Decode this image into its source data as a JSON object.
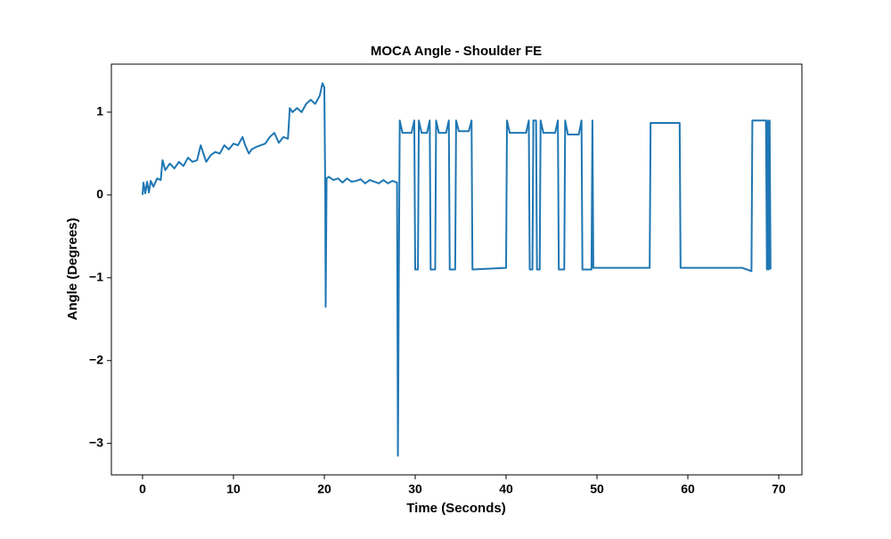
{
  "chart_data": {
    "type": "line",
    "title": "MOCA Angle - Shoulder FE",
    "x_label": "Time (Seconds)",
    "y_label": "Angle (Degrees)",
    "x": [
      0,
      0.1,
      0.3,
      0.5,
      0.7,
      0.9,
      1.2,
      1.6,
      2,
      2.2,
      2.5,
      3,
      3.5,
      4,
      4.5,
      5,
      5.5,
      6,
      6.4,
      6.7,
      7,
      7.5,
      8,
      8.5,
      9,
      9.5,
      10,
      10.5,
      11,
      11.3,
      11.7,
      12,
      12.5,
      13,
      13.5,
      14,
      14.5,
      15,
      15.5,
      16,
      16.2,
      16.5,
      17,
      17.5,
      18,
      18.5,
      19,
      19.5,
      19.8,
      20,
      20.1,
      20.15,
      20.25,
      20.5,
      21,
      21.5,
      22,
      22.5,
      23,
      23.5,
      24,
      24.5,
      25,
      25.5,
      26,
      26.5,
      27,
      27.5,
      28,
      28.1,
      28.2,
      28.3,
      28.6,
      29.6,
      29.9,
      30,
      30.3,
      30.4,
      30.7,
      31.3,
      31.6,
      31.7,
      32.2,
      32.3,
      32.6,
      33.4,
      33.7,
      33.8,
      34.4,
      34.5,
      34.8,
      35.9,
      36.2,
      36.3,
      40,
      40.1,
      40.4,
      42.2,
      42.5,
      42.6,
      42.9,
      43,
      43.3,
      43.4,
      43.7,
      43.8,
      44.1,
      45.4,
      45.7,
      45.8,
      46.4,
      46.5,
      46.8,
      48,
      48.3,
      48.4,
      49.4,
      49.5,
      49.6,
      55.8,
      55.9,
      59.1,
      59.2,
      66,
      67,
      67.1,
      68.6,
      68.7,
      68.8,
      68.9,
      69,
      69.1
    ],
    "series": [
      {
        "name": "Angle",
        "color": "#1f77b4",
        "values": [
          0.0,
          0.15,
          0.02,
          0.16,
          0.03,
          0.17,
          0.1,
          0.2,
          0.18,
          0.42,
          0.3,
          0.38,
          0.32,
          0.4,
          0.35,
          0.45,
          0.4,
          0.42,
          0.6,
          0.5,
          0.4,
          0.48,
          0.52,
          0.5,
          0.6,
          0.55,
          0.62,
          0.6,
          0.7,
          0.6,
          0.5,
          0.55,
          0.58,
          0.6,
          0.62,
          0.7,
          0.75,
          0.63,
          0.7,
          0.68,
          1.05,
          1.0,
          1.05,
          1.0,
          1.1,
          1.15,
          1.1,
          1.2,
          1.35,
          1.3,
          0.1,
          -1.35,
          0.2,
          0.22,
          0.18,
          0.2,
          0.15,
          0.2,
          0.16,
          0.17,
          0.19,
          0.14,
          0.18,
          0.16,
          0.14,
          0.18,
          0.14,
          0.17,
          0.15,
          -3.15,
          -0.92,
          0.9,
          0.75,
          0.75,
          0.9,
          -0.9,
          -0.9,
          0.9,
          0.75,
          0.75,
          0.9,
          -0.9,
          -0.9,
          0.9,
          0.75,
          0.75,
          0.9,
          -0.9,
          -0.9,
          0.9,
          0.77,
          0.77,
          0.9,
          -0.9,
          -0.88,
          0.9,
          0.75,
          0.75,
          0.9,
          -0.9,
          -0.9,
          0.9,
          0.9,
          -0.9,
          -0.9,
          0.9,
          0.75,
          0.75,
          0.9,
          -0.9,
          -0.9,
          0.9,
          0.73,
          0.73,
          0.9,
          -0.9,
          -0.9,
          0.9,
          -0.88,
          -0.88,
          0.87,
          0.87,
          -0.88,
          -0.88,
          -0.92,
          0.9,
          0.9,
          -0.9,
          0.9,
          -0.9,
          0.9,
          -0.9
        ]
      }
    ],
    "xlim": [
      -3.43,
      72.55
    ],
    "ylim": [
      -3.38,
      1.58
    ],
    "xticks": [
      0,
      10,
      20,
      30,
      40,
      50,
      60,
      70
    ],
    "yticks": [
      {
        "value": -3,
        "label": "−3"
      },
      {
        "value": -2,
        "label": "−2"
      },
      {
        "value": -1,
        "label": "−1"
      },
      0,
      1
    ]
  }
}
